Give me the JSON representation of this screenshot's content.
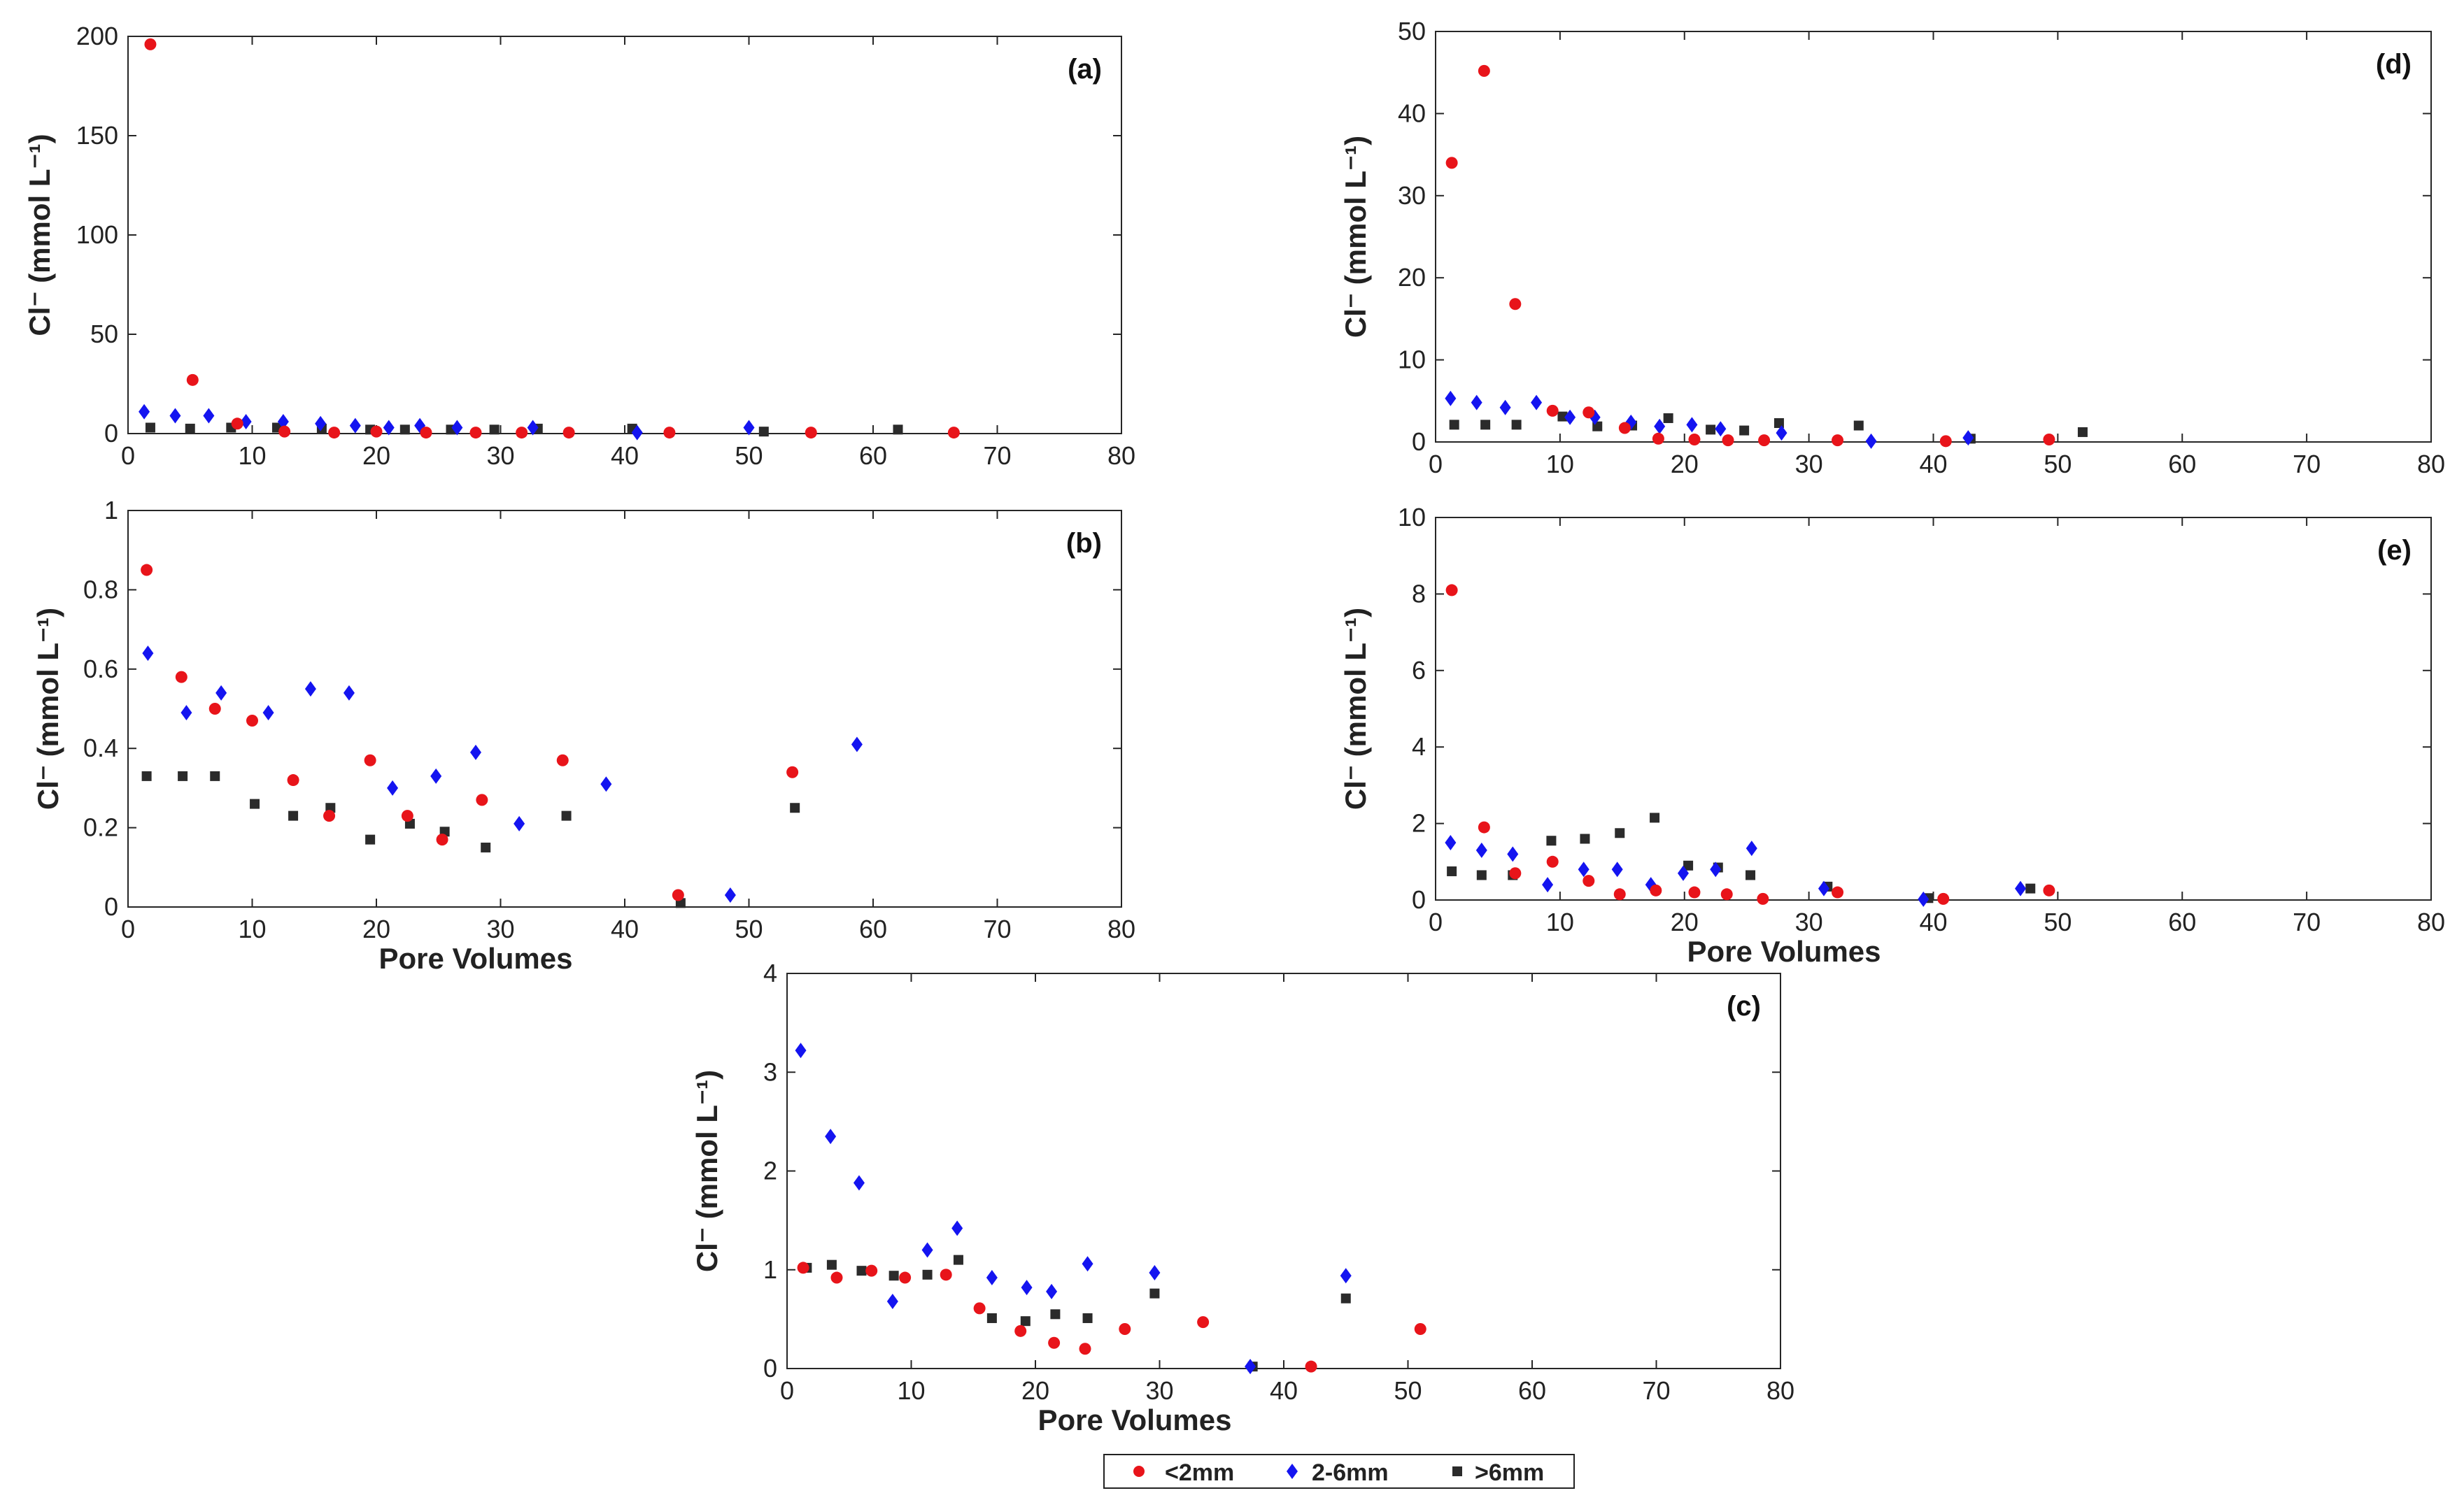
{
  "legend": {
    "entries": [
      {
        "name": "<2mm",
        "color": "#e8141a",
        "marker": "circle"
      },
      {
        "name": "2-6mm",
        "color": "#1414f0",
        "marker": "diamond"
      },
      {
        "name": ">6mm",
        "color": "#2b2b2b",
        "marker": "square"
      }
    ]
  },
  "chart_data": [
    {
      "id": "a",
      "type": "scatter",
      "panel_label": "(a)",
      "title": "",
      "xlabel": "",
      "ylabel": "Cl⁻ (mmol L⁻¹)",
      "xlim": [
        0,
        80
      ],
      "ylim": [
        0,
        200
      ],
      "xticks": [
        0,
        10,
        20,
        30,
        40,
        50,
        60,
        70,
        80
      ],
      "yticks": [
        0,
        50,
        100,
        150,
        200
      ],
      "series": [
        {
          "name": "<2mm",
          "points": [
            [
              1.8,
              196
            ],
            [
              5.2,
              27
            ],
            [
              8.8,
              5
            ],
            [
              12.6,
              1
            ],
            [
              16.6,
              0.5
            ],
            [
              20.0,
              1
            ],
            [
              24.0,
              0.5
            ],
            [
              28.0,
              0.5
            ],
            [
              31.7,
              0.5
            ],
            [
              35.5,
              0.5
            ],
            [
              43.6,
              0.5
            ],
            [
              55.0,
              0.5
            ],
            [
              66.5,
              0.5
            ]
          ]
        },
        {
          "name": "2-6mm",
          "points": [
            [
              1.3,
              11
            ],
            [
              3.8,
              9
            ],
            [
              6.5,
              9
            ],
            [
              9.5,
              6
            ],
            [
              12.5,
              6
            ],
            [
              15.5,
              5
            ],
            [
              18.3,
              4
            ],
            [
              21.0,
              3
            ],
            [
              23.5,
              4
            ],
            [
              26.5,
              3
            ],
            [
              32.6,
              3
            ],
            [
              41.0,
              0.5
            ],
            [
              50.0,
              3
            ]
          ]
        },
        {
          "name": ">6mm",
          "points": [
            [
              1.8,
              3
            ],
            [
              5.0,
              2.5
            ],
            [
              8.3,
              3
            ],
            [
              12.0,
              3
            ],
            [
              15.6,
              2.5
            ],
            [
              19.5,
              2
            ],
            [
              22.3,
              2
            ],
            [
              26.0,
              2
            ],
            [
              29.5,
              2
            ],
            [
              33.0,
              2.5
            ],
            [
              40.6,
              2.5
            ],
            [
              51.2,
              1
            ],
            [
              62.0,
              2
            ]
          ]
        }
      ]
    },
    {
      "id": "b",
      "type": "scatter",
      "panel_label": "(b)",
      "title": "",
      "xlabel": "Pore Volumes",
      "ylabel": "Cl⁻ (mmol L⁻¹)",
      "xlim": [
        0,
        80
      ],
      "ylim": [
        0,
        1
      ],
      "xticks": [
        0,
        10,
        20,
        30,
        40,
        50,
        60,
        70,
        80
      ],
      "yticks": [
        0,
        0.2,
        0.4,
        0.6,
        0.8,
        1
      ],
      "series": [
        {
          "name": "<2mm",
          "points": [
            [
              1.5,
              0.85
            ],
            [
              4.3,
              0.58
            ],
            [
              7.0,
              0.5
            ],
            [
              10.0,
              0.47
            ],
            [
              13.3,
              0.32
            ],
            [
              16.2,
              0.23
            ],
            [
              19.5,
              0.37
            ],
            [
              22.5,
              0.23
            ],
            [
              25.3,
              0.17
            ],
            [
              28.5,
              0.27
            ],
            [
              35.0,
              0.37
            ],
            [
              44.3,
              0.03
            ],
            [
              53.5,
              0.34
            ]
          ]
        },
        {
          "name": "2-6mm",
          "points": [
            [
              1.6,
              0.64
            ],
            [
              4.7,
              0.49
            ],
            [
              7.5,
              0.54
            ],
            [
              11.3,
              0.49
            ],
            [
              14.7,
              0.55
            ],
            [
              17.8,
              0.54
            ],
            [
              21.3,
              0.3
            ],
            [
              24.8,
              0.33
            ],
            [
              28.0,
              0.39
            ],
            [
              31.5,
              0.21
            ],
            [
              38.5,
              0.31
            ],
            [
              48.5,
              0.03
            ],
            [
              58.7,
              0.41
            ]
          ]
        },
        {
          "name": ">6mm",
          "points": [
            [
              1.5,
              0.33
            ],
            [
              4.4,
              0.33
            ],
            [
              7.0,
              0.33
            ],
            [
              10.2,
              0.26
            ],
            [
              13.3,
              0.23
            ],
            [
              16.3,
              0.25
            ],
            [
              19.5,
              0.17
            ],
            [
              22.7,
              0.21
            ],
            [
              25.5,
              0.19
            ],
            [
              28.8,
              0.15
            ],
            [
              35.3,
              0.23
            ],
            [
              44.5,
              0.01
            ],
            [
              53.7,
              0.25
            ]
          ]
        }
      ]
    },
    {
      "id": "c",
      "type": "scatter",
      "panel_label": "(c)",
      "title": "",
      "xlabel": "Pore Volumes",
      "ylabel": "Cl⁻ (mmol L⁻¹)",
      "xlim": [
        0,
        80
      ],
      "ylim": [
        0,
        4
      ],
      "xticks": [
        0,
        10,
        20,
        30,
        40,
        50,
        60,
        70,
        80
      ],
      "yticks": [
        0,
        1,
        2,
        3,
        4
      ],
      "series": [
        {
          "name": "<2mm",
          "points": [
            [
              1.3,
              1.02
            ],
            [
              4.0,
              0.92
            ],
            [
              6.8,
              0.99
            ],
            [
              9.5,
              0.92
            ],
            [
              12.8,
              0.95
            ],
            [
              15.5,
              0.61
            ],
            [
              18.8,
              0.38
            ],
            [
              21.5,
              0.26
            ],
            [
              24.0,
              0.2
            ],
            [
              27.2,
              0.4
            ],
            [
              33.5,
              0.47
            ],
            [
              42.2,
              0.02
            ],
            [
              51.0,
              0.4
            ]
          ]
        },
        {
          "name": "2-6mm",
          "points": [
            [
              1.1,
              3.22
            ],
            [
              3.5,
              2.35
            ],
            [
              5.8,
              1.88
            ],
            [
              8.5,
              0.68
            ],
            [
              11.3,
              1.2
            ],
            [
              13.7,
              1.42
            ],
            [
              16.5,
              0.92
            ],
            [
              19.3,
              0.82
            ],
            [
              21.3,
              0.78
            ],
            [
              24.2,
              1.06
            ],
            [
              29.6,
              0.97
            ],
            [
              37.3,
              0.02
            ],
            [
              45.0,
              0.94
            ]
          ]
        },
        {
          "name": ">6mm",
          "points": [
            [
              1.6,
              1.02
            ],
            [
              3.6,
              1.05
            ],
            [
              6.0,
              0.99
            ],
            [
              8.6,
              0.94
            ],
            [
              11.3,
              0.95
            ],
            [
              13.8,
              1.1
            ],
            [
              16.5,
              0.51
            ],
            [
              19.2,
              0.48
            ],
            [
              21.6,
              0.55
            ],
            [
              24.2,
              0.51
            ],
            [
              29.6,
              0.76
            ],
            [
              37.5,
              0.02
            ],
            [
              45.0,
              0.71
            ]
          ]
        }
      ]
    },
    {
      "id": "d",
      "type": "scatter",
      "panel_label": "(d)",
      "title": "",
      "xlabel": "",
      "ylabel": "Cl⁻ (mmol L⁻¹)",
      "xlim": [
        0,
        80
      ],
      "ylim": [
        0,
        50
      ],
      "xticks": [
        0,
        10,
        20,
        30,
        40,
        50,
        60,
        70,
        80
      ],
      "yticks": [
        0,
        10,
        20,
        30,
        40,
        50
      ],
      "series": [
        {
          "name": "<2mm",
          "points": [
            [
              1.3,
              34
            ],
            [
              3.9,
              45.2
            ],
            [
              6.4,
              16.8
            ],
            [
              9.4,
              3.8
            ],
            [
              12.3,
              3.6
            ],
            [
              15.2,
              1.7
            ],
            [
              17.9,
              0.4
            ],
            [
              20.8,
              0.3
            ],
            [
              23.5,
              0.2
            ],
            [
              26.4,
              0.2
            ],
            [
              32.3,
              0.2
            ],
            [
              41.0,
              0.1
            ],
            [
              49.3,
              0.3
            ]
          ]
        },
        {
          "name": "2-6mm",
          "points": [
            [
              1.2,
              5.3
            ],
            [
              3.3,
              4.8
            ],
            [
              5.6,
              4.2
            ],
            [
              8.1,
              4.8
            ],
            [
              10.8,
              3.0
            ],
            [
              12.8,
              3.0
            ],
            [
              15.7,
              2.4
            ],
            [
              18.0,
              1.9
            ],
            [
              20.6,
              2.1
            ],
            [
              22.9,
              1.6
            ],
            [
              27.8,
              1.1
            ],
            [
              35.0,
              0.1
            ],
            [
              42.8,
              0.5
            ]
          ]
        },
        {
          "name": ">6mm",
          "points": [
            [
              1.5,
              2.1
            ],
            [
              4.0,
              2.1
            ],
            [
              6.5,
              2.1
            ],
            [
              10.2,
              3.1
            ],
            [
              13.0,
              1.9
            ],
            [
              15.8,
              2.0
            ],
            [
              18.7,
              2.9
            ],
            [
              22.1,
              1.5
            ],
            [
              24.8,
              1.4
            ],
            [
              27.6,
              2.3
            ],
            [
              34.0,
              2.0
            ],
            [
              43.0,
              0.4
            ],
            [
              52.0,
              1.2
            ]
          ]
        }
      ]
    },
    {
      "id": "e",
      "type": "scatter",
      "panel_label": "(e)",
      "title": "",
      "xlabel": "Pore Volumes",
      "ylabel": "Cl⁻ (mmol L⁻¹)",
      "xlim": [
        0,
        80
      ],
      "ylim": [
        0,
        10
      ],
      "xticks": [
        0,
        10,
        20,
        30,
        40,
        50,
        60,
        70,
        80
      ],
      "yticks": [
        0,
        2,
        4,
        6,
        8,
        10
      ],
      "series": [
        {
          "name": "<2mm",
          "points": [
            [
              1.3,
              8.1
            ],
            [
              3.9,
              1.9
            ],
            [
              6.4,
              0.7
            ],
            [
              9.4,
              1.0
            ],
            [
              12.3,
              0.5
            ],
            [
              14.8,
              0.15
            ],
            [
              17.7,
              0.25
            ],
            [
              20.8,
              0.2
            ],
            [
              23.4,
              0.15
            ],
            [
              26.3,
              0.03
            ],
            [
              32.3,
              0.2
            ],
            [
              40.8,
              0.03
            ],
            [
              49.3,
              0.25
            ]
          ]
        },
        {
          "name": "2-6mm",
          "points": [
            [
              1.2,
              1.5
            ],
            [
              3.7,
              1.3
            ],
            [
              6.2,
              1.2
            ],
            [
              9.0,
              0.4
            ],
            [
              11.9,
              0.8
            ],
            [
              14.6,
              0.8
            ],
            [
              17.3,
              0.4
            ],
            [
              19.9,
              0.7
            ],
            [
              22.5,
              0.8
            ],
            [
              25.4,
              1.35
            ],
            [
              31.2,
              0.3
            ],
            [
              39.2,
              0.02
            ],
            [
              47.0,
              0.3
            ]
          ]
        },
        {
          "name": ">6mm",
          "points": [
            [
              1.3,
              0.75
            ],
            [
              3.7,
              0.65
            ],
            [
              6.2,
              0.65
            ],
            [
              9.3,
              1.55
            ],
            [
              12.0,
              1.6
            ],
            [
              14.8,
              1.75
            ],
            [
              17.6,
              2.15
            ],
            [
              20.3,
              0.9
            ],
            [
              22.7,
              0.85
            ],
            [
              25.3,
              0.65
            ],
            [
              31.5,
              0.35
            ],
            [
              39.6,
              0.05
            ],
            [
              47.8,
              0.3
            ]
          ]
        }
      ]
    }
  ]
}
